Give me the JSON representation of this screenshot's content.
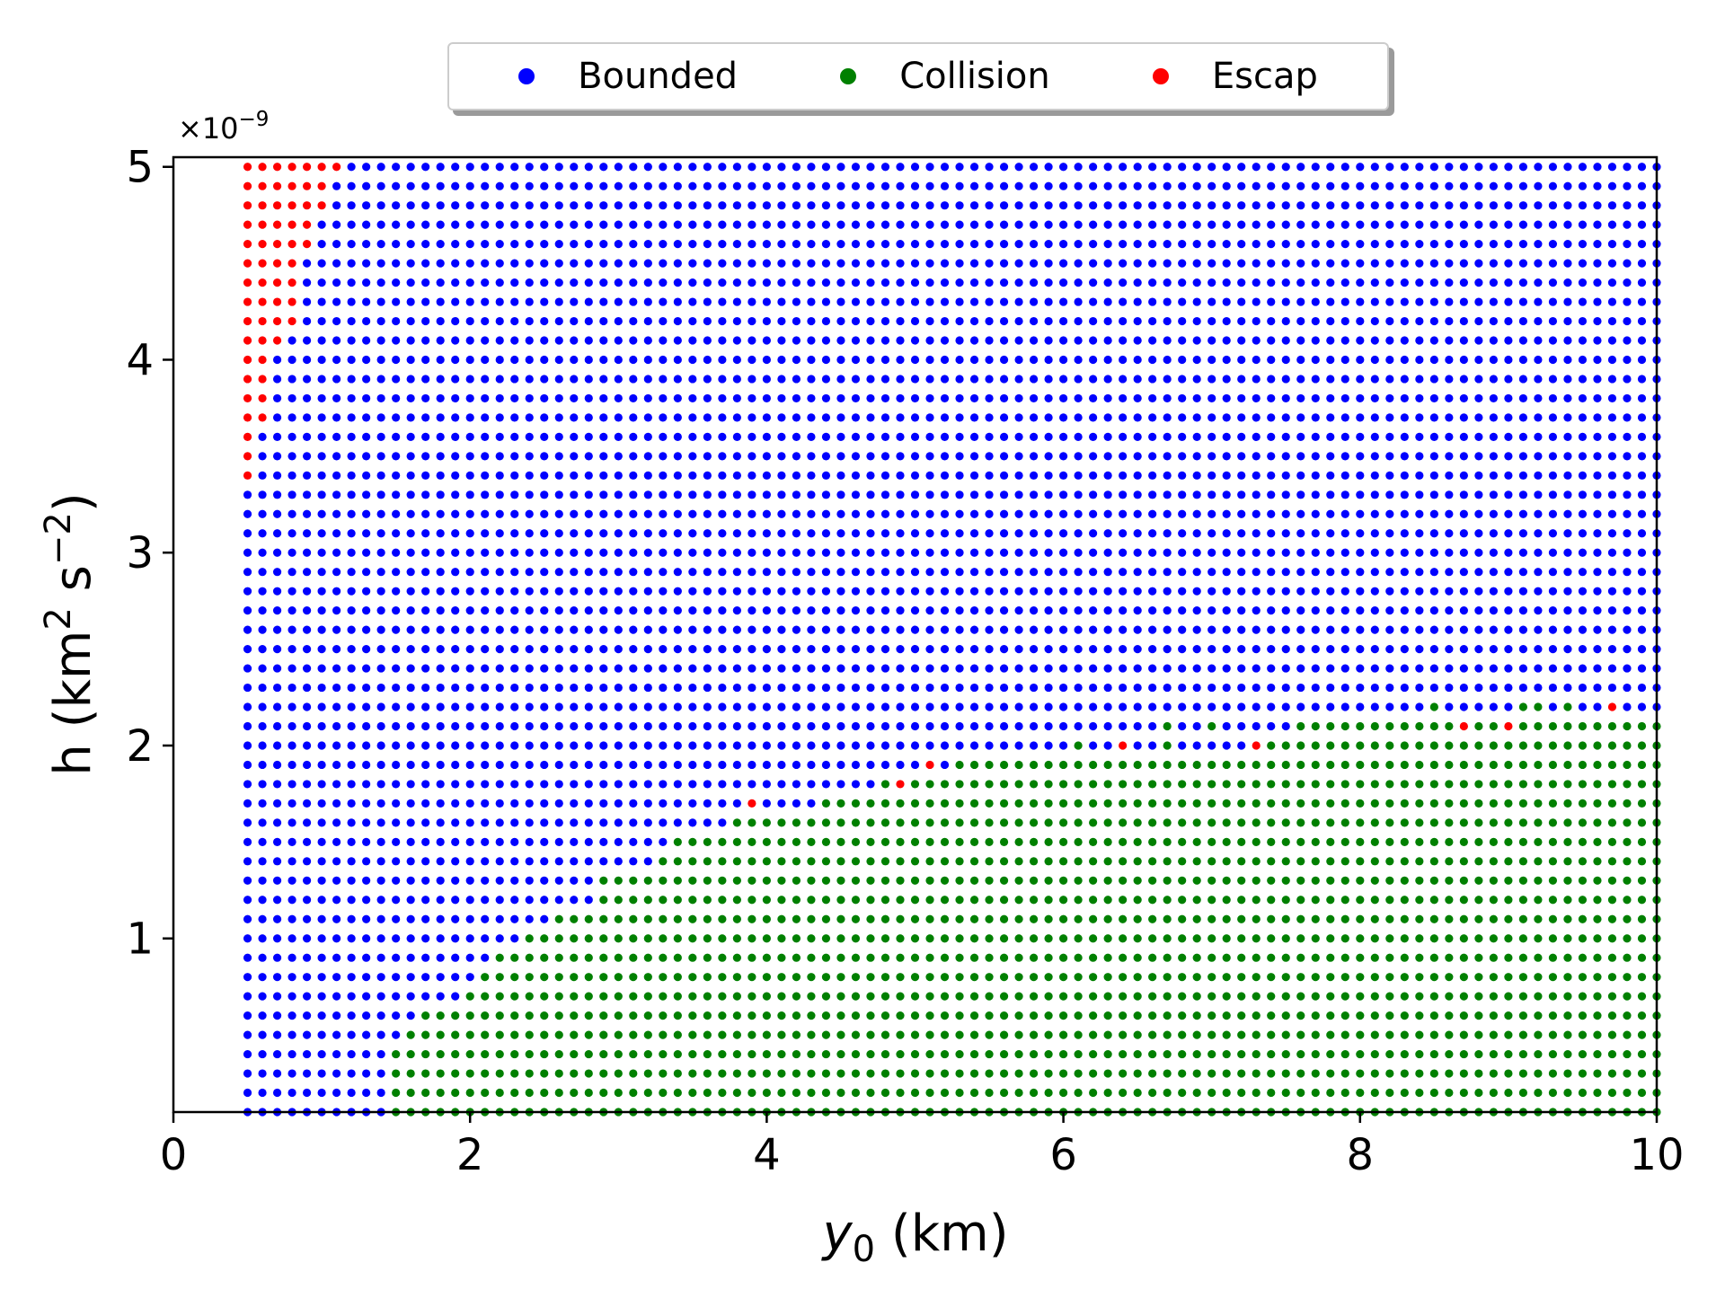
{
  "chart_data": {
    "type": "scatter",
    "title": "",
    "xlabel_var": "y",
    "xlabel_sub": "0",
    "xlabel_unit": "(km)",
    "ylabel_pre": "h (km",
    "ylabel_sup1": "2",
    "ylabel_mid": " s",
    "ylabel_sup2": "−2",
    "ylabel_post": ")",
    "offset_text_base": "×10",
    "offset_text_exp": "−9",
    "xlim": [
      0,
      10
    ],
    "ylim": [
      0.1,
      5.05
    ],
    "y_scale_factor": "1e-9",
    "xticks": [
      "0",
      "2",
      "4",
      "6",
      "8",
      "10"
    ],
    "yticks": [
      "1",
      "2",
      "3",
      "4",
      "5"
    ],
    "grid": false,
    "legend_position": "top-center, outside plot",
    "grid_sampling": {
      "y0_start": 0.5,
      "y0_step": 0.1,
      "y0_count": 96,
      "h_start": 0.1,
      "h_step": 0.1,
      "h_count": 50
    },
    "series": [
      {
        "name": "Bounded",
        "color": "#0000ff",
        "description": "all remaining grid points (upper region and left band)"
      },
      {
        "name": "Collision",
        "color": "#008000",
        "boundary_min_y0_by_h": [
          [
            0.1,
            1.5
          ],
          [
            0.2,
            1.5
          ],
          [
            0.3,
            1.5
          ],
          [
            0.4,
            1.5
          ],
          [
            0.5,
            1.6
          ],
          [
            0.6,
            1.7
          ],
          [
            0.7,
            2.0
          ],
          [
            0.8,
            2.1
          ],
          [
            0.9,
            2.2
          ],
          [
            1.0,
            2.4
          ],
          [
            1.1,
            2.6
          ],
          [
            1.2,
            2.9
          ],
          [
            1.3,
            2.9
          ],
          [
            1.4,
            3.3
          ],
          [
            1.5,
            3.4
          ],
          [
            1.6,
            3.8
          ],
          [
            1.7,
            4.4
          ],
          [
            1.8,
            5.0
          ],
          [
            1.9,
            5.3
          ],
          [
            2.0,
            7.4
          ],
          [
            2.1,
            7.6
          ],
          [
            2.2,
            10.1
          ]
        ],
        "isolated_points": [
          [
            4.8,
            1.8
          ],
          [
            6.1,
            2.0
          ],
          [
            6.7,
            2.0
          ],
          [
            6.7,
            2.1
          ],
          [
            7.0,
            2.1
          ],
          [
            8.5,
            2.2
          ],
          [
            9.1,
            2.2
          ],
          [
            9.2,
            2.2
          ],
          [
            9.4,
            2.2
          ],
          [
            9.6,
            2.1
          ]
        ]
      },
      {
        "name": "Escap",
        "color": "#ff0000",
        "left_band_width_by_h": [
          [
            3.4,
            1
          ],
          [
            3.5,
            1
          ],
          [
            3.6,
            1
          ],
          [
            3.7,
            2
          ],
          [
            3.8,
            2
          ],
          [
            3.9,
            2
          ],
          [
            4.0,
            2
          ],
          [
            4.1,
            3
          ],
          [
            4.2,
            4
          ],
          [
            4.3,
            4
          ],
          [
            4.4,
            4
          ],
          [
            4.5,
            4
          ],
          [
            4.6,
            5
          ],
          [
            4.7,
            5
          ],
          [
            4.8,
            6
          ],
          [
            4.9,
            6
          ],
          [
            5.0,
            7
          ]
        ],
        "isolated_points": [
          [
            3.9,
            1.7
          ],
          [
            4.9,
            1.8
          ],
          [
            5.1,
            1.9
          ],
          [
            6.4,
            2.0
          ],
          [
            7.3,
            2.0
          ],
          [
            8.7,
            2.1
          ],
          [
            9.0,
            2.1
          ],
          [
            9.7,
            2.2
          ]
        ]
      }
    ]
  },
  "legend": {
    "bounded_label": "Bounded",
    "collision_label": "Collision",
    "escape_label": "Escap"
  },
  "colors": {
    "bounded": "#0000ff",
    "collision": "#008000",
    "escape": "#ff0000"
  }
}
